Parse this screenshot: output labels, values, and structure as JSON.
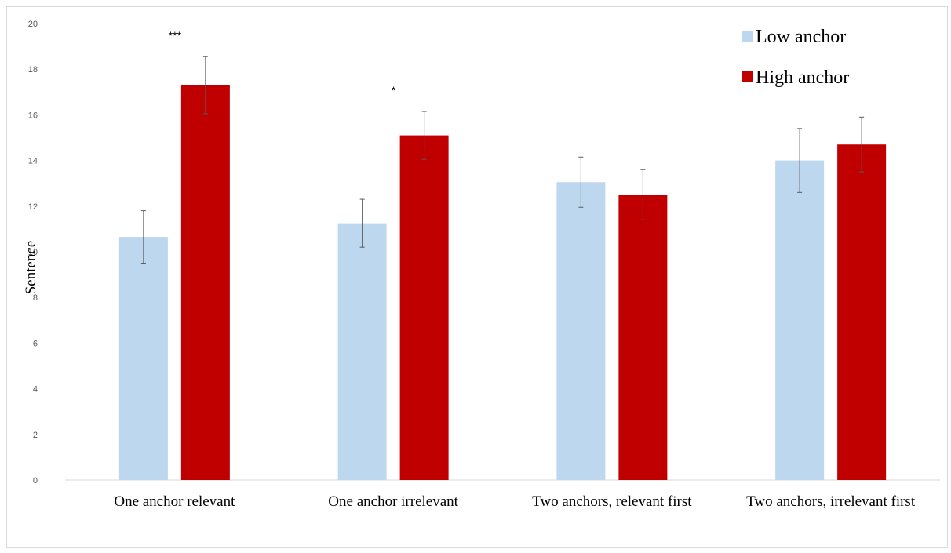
{
  "chart_data": {
    "type": "bar",
    "title": "",
    "xlabel": "",
    "ylabel": "Sentence",
    "ylim": [
      0,
      20
    ],
    "yticks": [
      0,
      2,
      4,
      6,
      8,
      10,
      12,
      14,
      16,
      18,
      20
    ],
    "grid": false,
    "legend_position": "top-right",
    "categories": [
      "One anchor relevant",
      "One anchor irrelevant",
      "Two anchors, relevant first",
      "Two anchors, irrelevant first"
    ],
    "series": [
      {
        "name": "Low  anchor",
        "color": "#bdd7ee",
        "values": [
          10.65,
          11.25,
          13.05,
          14.0
        ],
        "error": [
          1.15,
          1.05,
          1.1,
          1.4
        ]
      },
      {
        "name": "High  anchor",
        "color": "#c00000",
        "values": [
          17.3,
          15.1,
          12.5,
          14.7
        ],
        "error": [
          1.25,
          1.05,
          1.1,
          1.2
        ]
      }
    ],
    "annotations": [
      "***",
      "*",
      "",
      ""
    ]
  }
}
